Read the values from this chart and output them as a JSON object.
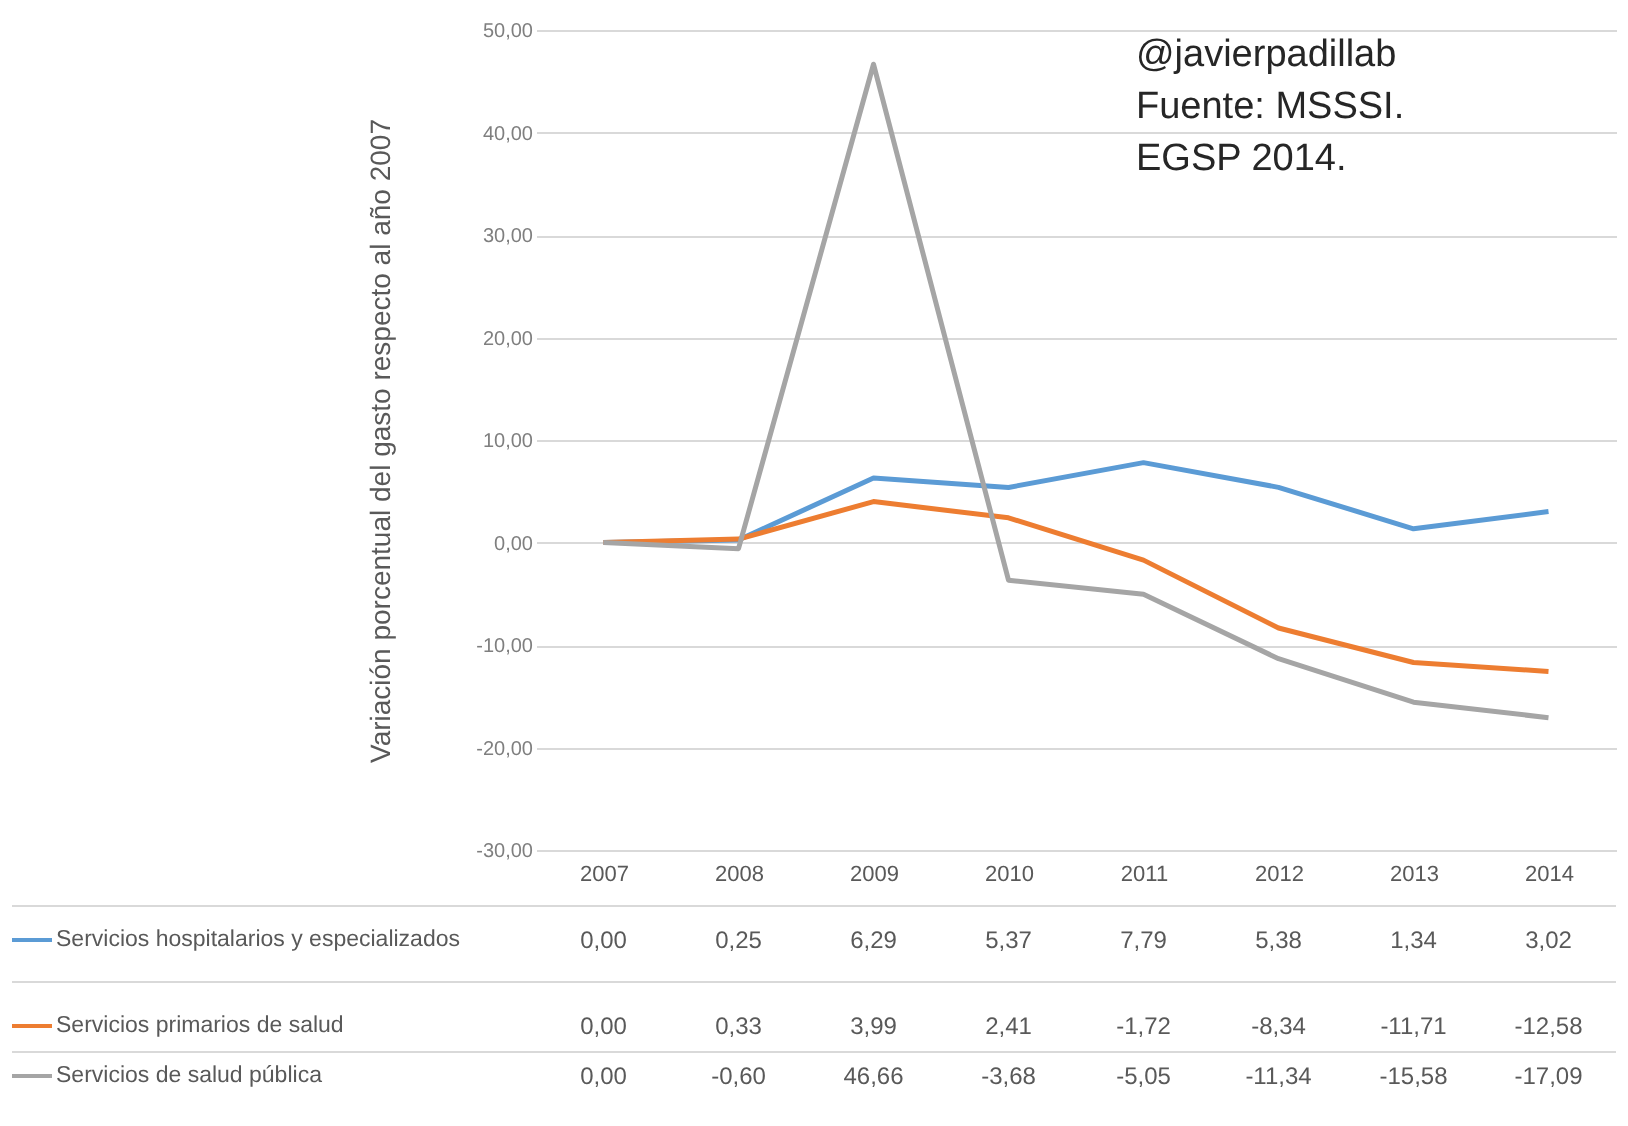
{
  "chart_data": {
    "type": "line",
    "ylabel": "Variación porcentual del gasto respecto al año 2007",
    "annotations": [
      "@javierpadillab",
      "Fuente: MSSSI.",
      "EGSP 2014."
    ],
    "categories": [
      "2007",
      "2008",
      "2009",
      "2010",
      "2011",
      "2012",
      "2013",
      "2014"
    ],
    "ylim": [
      -30,
      50
    ],
    "yticks": [
      {
        "value": -30,
        "label": "-30,00"
      },
      {
        "value": -20,
        "label": "-20,00"
      },
      {
        "value": -10,
        "label": "-10,00"
      },
      {
        "value": 0,
        "label": "0,00"
      },
      {
        "value": 10,
        "label": "10,00"
      },
      {
        "value": 20,
        "label": "20,00"
      },
      {
        "value": 30,
        "label": "30,00"
      },
      {
        "value": 40,
        "label": "40,00"
      },
      {
        "value": 50,
        "label": "50,00"
      }
    ],
    "grid": "y",
    "legend": "bottom",
    "marker": "none",
    "line_style": "solid",
    "series": [
      {
        "name": "Servicios hospitalarios y especializados",
        "color": "#5b9bd5",
        "values": [
          0.0,
          0.25,
          6.29,
          5.37,
          7.79,
          5.38,
          1.34,
          3.02
        ],
        "value_labels": [
          "0,00",
          "0,25",
          "6,29",
          "5,37",
          "7,79",
          "5,38",
          "1,34",
          "3,02"
        ]
      },
      {
        "name": "Servicios primarios de salud",
        "color": "#ed7d31",
        "values": [
          0.0,
          0.33,
          3.99,
          2.41,
          -1.72,
          -8.34,
          -11.71,
          -12.58
        ],
        "value_labels": [
          "0,00",
          "0,33",
          "3,99",
          "2,41",
          "-1,72",
          "-8,34",
          "-11,71",
          "-12,58"
        ]
      },
      {
        "name": "Servicios de salud pública",
        "color": "#a5a5a5",
        "values": [
          0.0,
          -0.6,
          46.66,
          -3.68,
          -5.05,
          -11.34,
          -15.58,
          -17.09
        ],
        "value_labels": [
          "0,00",
          "-0,60",
          "46,66",
          "-3,68",
          "-5,05",
          "-11,34",
          "-15,58",
          "-17,09"
        ]
      }
    ]
  }
}
